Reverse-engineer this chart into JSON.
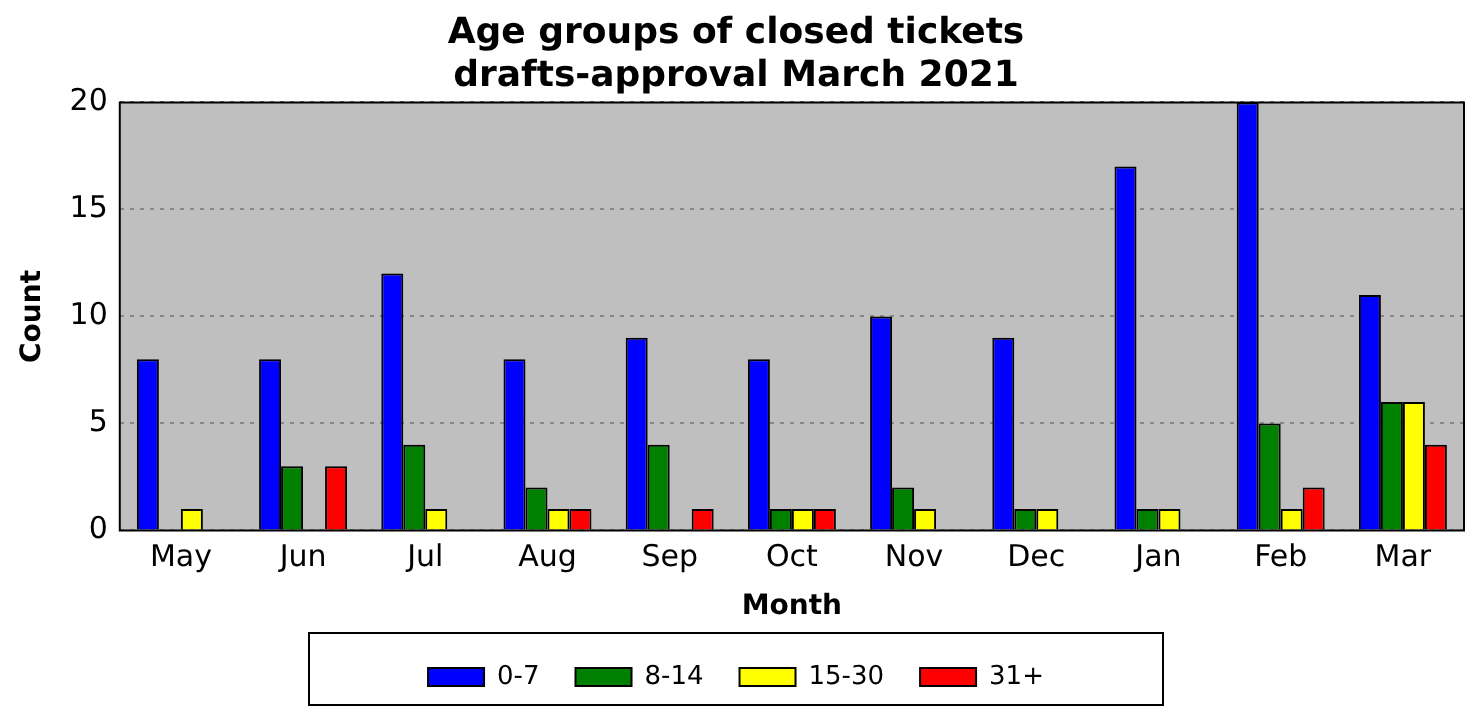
{
  "chart_data": {
    "type": "bar",
    "title": "Age groups of closed tickets\ndrafts-approval March 2021",
    "xlabel": "Month",
    "ylabel": "Count",
    "categories": [
      "May",
      "Jun",
      "Jul",
      "Aug",
      "Sep",
      "Oct",
      "Nov",
      "Dec",
      "Jan",
      "Feb",
      "Mar"
    ],
    "series": [
      {
        "name": "0-7",
        "color": "#0000ff",
        "values": [
          8,
          8,
          12,
          8,
          9,
          8,
          10,
          9,
          17,
          20,
          11
        ]
      },
      {
        "name": "8-14",
        "color": "#008000",
        "values": [
          0,
          3,
          4,
          2,
          4,
          1,
          2,
          1,
          1,
          5,
          6
        ]
      },
      {
        "name": "15-30",
        "color": "#ffff00",
        "values": [
          1,
          0,
          1,
          1,
          0,
          1,
          1,
          1,
          1,
          1,
          6
        ]
      },
      {
        "name": "31+",
        "color": "#ff0000",
        "values": [
          0,
          3,
          0,
          1,
          1,
          1,
          0,
          0,
          0,
          2,
          4
        ]
      }
    ],
    "ylim": [
      0,
      20
    ],
    "yticks": [
      0,
      5,
      10,
      15,
      20
    ],
    "grid": "y",
    "legend": "bottom"
  }
}
